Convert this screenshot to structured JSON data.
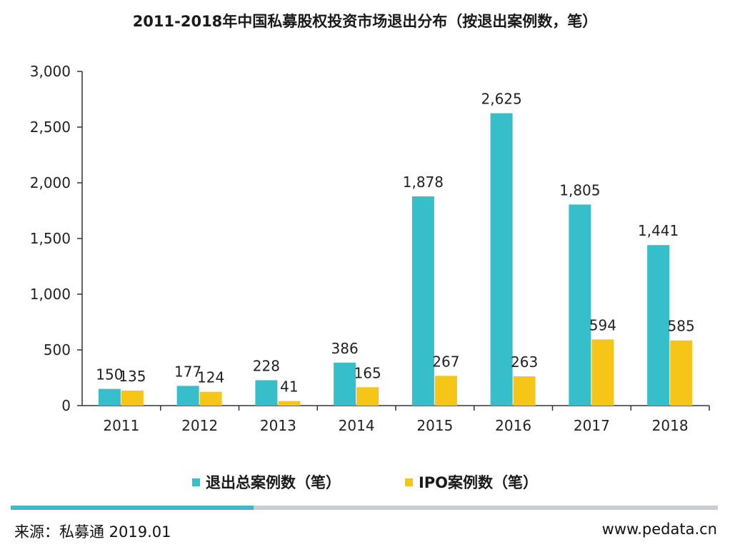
{
  "colors": {
    "total": "#36BFCB",
    "ipo": "#F5C518",
    "axis": "#333333",
    "accent_bar": "#3FB9C8"
  },
  "chart_data": {
    "type": "bar",
    "title": "2011-2018年中国私募股权投资市场退出分布（按退出案例数，笔）",
    "categories": [
      "2011",
      "2012",
      "2013",
      "2014",
      "2015",
      "2016",
      "2017",
      "2018"
    ],
    "series": [
      {
        "name": "退出总案例数（笔）",
        "values": [
          150,
          177,
          228,
          386,
          1878,
          2625,
          1805,
          1441
        ],
        "labels": [
          "150",
          "177",
          "228",
          "386",
          "1,878",
          "2,625",
          "1,805",
          "1,441"
        ]
      },
      {
        "name": "IPO案例数（笔）",
        "values": [
          135,
          124,
          41,
          165,
          267,
          263,
          594,
          585
        ],
        "labels": [
          "135",
          "124",
          "41",
          "165",
          "267",
          "263",
          "594",
          "585"
        ]
      }
    ],
    "ylim": [
      0,
      3000
    ],
    "yticks": [
      0,
      500,
      1000,
      1500,
      2000,
      2500,
      3000
    ],
    "ytick_labels": [
      "0",
      "500",
      "1,000",
      "1,500",
      "2,000",
      "2,500",
      "3,000"
    ],
    "xlabel": "",
    "ylabel": "",
    "grid": false,
    "legend": "bottom"
  },
  "footer": {
    "source": "来源：私募通 2019.01",
    "website": "www.pedata.cn"
  }
}
